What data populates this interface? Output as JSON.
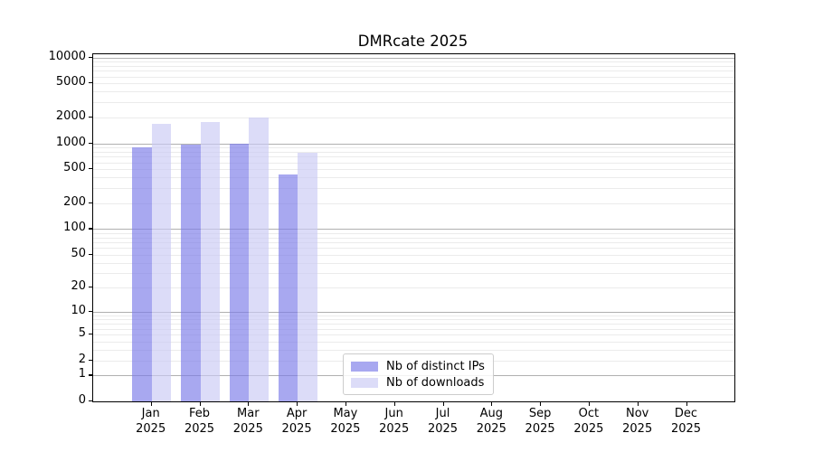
{
  "figure": {
    "background": "#ffffff"
  },
  "chart_data": {
    "type": "bar",
    "title": "DMRcate 2025",
    "x_categories": [
      "Jan\n2025",
      "Feb\n2025",
      "Mar\n2025",
      "Apr\n2025",
      "May\n2025",
      "Jun\n2025",
      "Jul\n2025",
      "Aug\n2025",
      "Sep\n2025",
      "Oct\n2025",
      "Nov\n2025",
      "Dec\n2025"
    ],
    "series": [
      {
        "name": "Nb of distinct IPs",
        "color": "rgba(123,123,232,0.66)",
        "legend_swatch_color": "#a8a8f0",
        "values": [
          900,
          960,
          1000,
          440,
          null,
          null,
          null,
          null,
          null,
          null,
          null,
          null
        ]
      },
      {
        "name": "Nb of downloads",
        "color": "rgba(202,202,244,0.66)",
        "legend_swatch_color": "#dcdcf8",
        "values": [
          1700,
          1780,
          2020,
          775,
          null,
          null,
          null,
          null,
          null,
          null,
          null,
          null
        ]
      }
    ],
    "y_axis": {
      "scale": "log1p",
      "tick_labels": [
        "0",
        "1",
        "2",
        "5",
        "10",
        "20",
        "50",
        "100",
        "200",
        "500",
        "1000",
        "2000",
        "5000",
        "10000"
      ],
      "ylim": [
        0,
        10800
      ],
      "grid": "both",
      "major_grid_color": "#b0b0b0",
      "minor_grid_color": "#ebebeb"
    },
    "xlabel": "",
    "ylabel": "",
    "legend_position": "inside lower center"
  }
}
